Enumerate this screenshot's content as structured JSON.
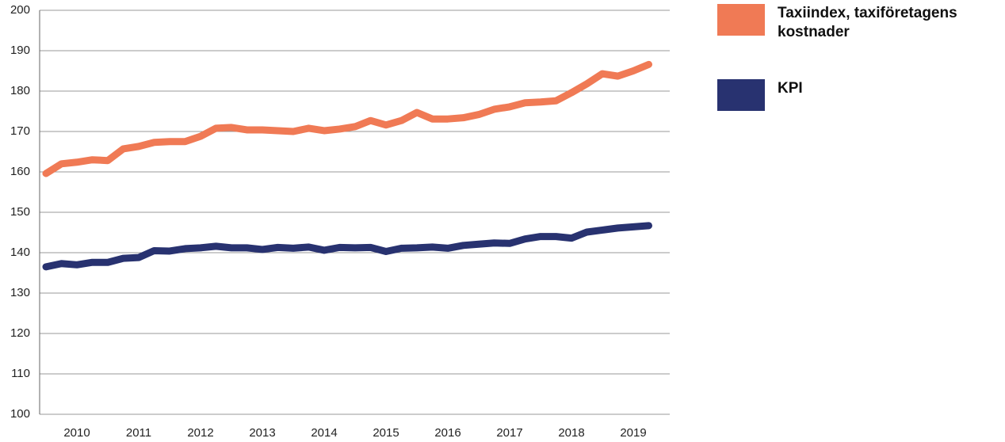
{
  "chart_data": {
    "type": "line",
    "categories": [
      null,
      null,
      "2010",
      null,
      null,
      null,
      "2011",
      null,
      null,
      null,
      "2012",
      null,
      null,
      null,
      "2013",
      null,
      null,
      null,
      "2014",
      null,
      null,
      null,
      "2015",
      null,
      null,
      null,
      "2016",
      null,
      null,
      null,
      "2017",
      null,
      null,
      null,
      "2018",
      null,
      null,
      null,
      "2019",
      null
    ],
    "series": [
      {
        "name": "Taxiindex, taxiföretagens kostnader",
        "color": "#f07a55",
        "values": [
          159.6,
          162,
          162.4,
          163,
          162.8,
          165.7,
          166.3,
          167.3,
          167.5,
          167.5,
          168.8,
          170.8,
          171,
          170.4,
          170.4,
          170.2,
          170,
          170.8,
          170.2,
          170.6,
          171.2,
          172.7,
          171.6,
          172.7,
          174.7,
          173.1,
          173.1,
          173.4,
          174.2,
          175.5,
          176.1,
          177.1,
          177.3,
          177.6,
          179.6,
          181.8,
          184.3,
          183.7,
          185,
          186.6
        ]
      },
      {
        "name": "KPI",
        "color": "#283270",
        "values": [
          136.5,
          137.3,
          137,
          137.6,
          137.6,
          138.6,
          138.8,
          140.5,
          140.4,
          141,
          141.2,
          141.6,
          141.2,
          141.2,
          140.8,
          141.3,
          141.1,
          141.4,
          140.6,
          141.3,
          141.2,
          141.3,
          140.3,
          141.1,
          141.2,
          141.4,
          141.1,
          141.8,
          142.1,
          142.4,
          142.3,
          143.4,
          144,
          144,
          143.6,
          145.1,
          145.6,
          146.1,
          146.4,
          146.7
        ]
      }
    ],
    "ylim": [
      100,
      200
    ],
    "yticks": [
      100,
      110,
      120,
      130,
      140,
      150,
      160,
      170,
      180,
      190,
      200
    ],
    "grid": true,
    "legend": "right"
  }
}
